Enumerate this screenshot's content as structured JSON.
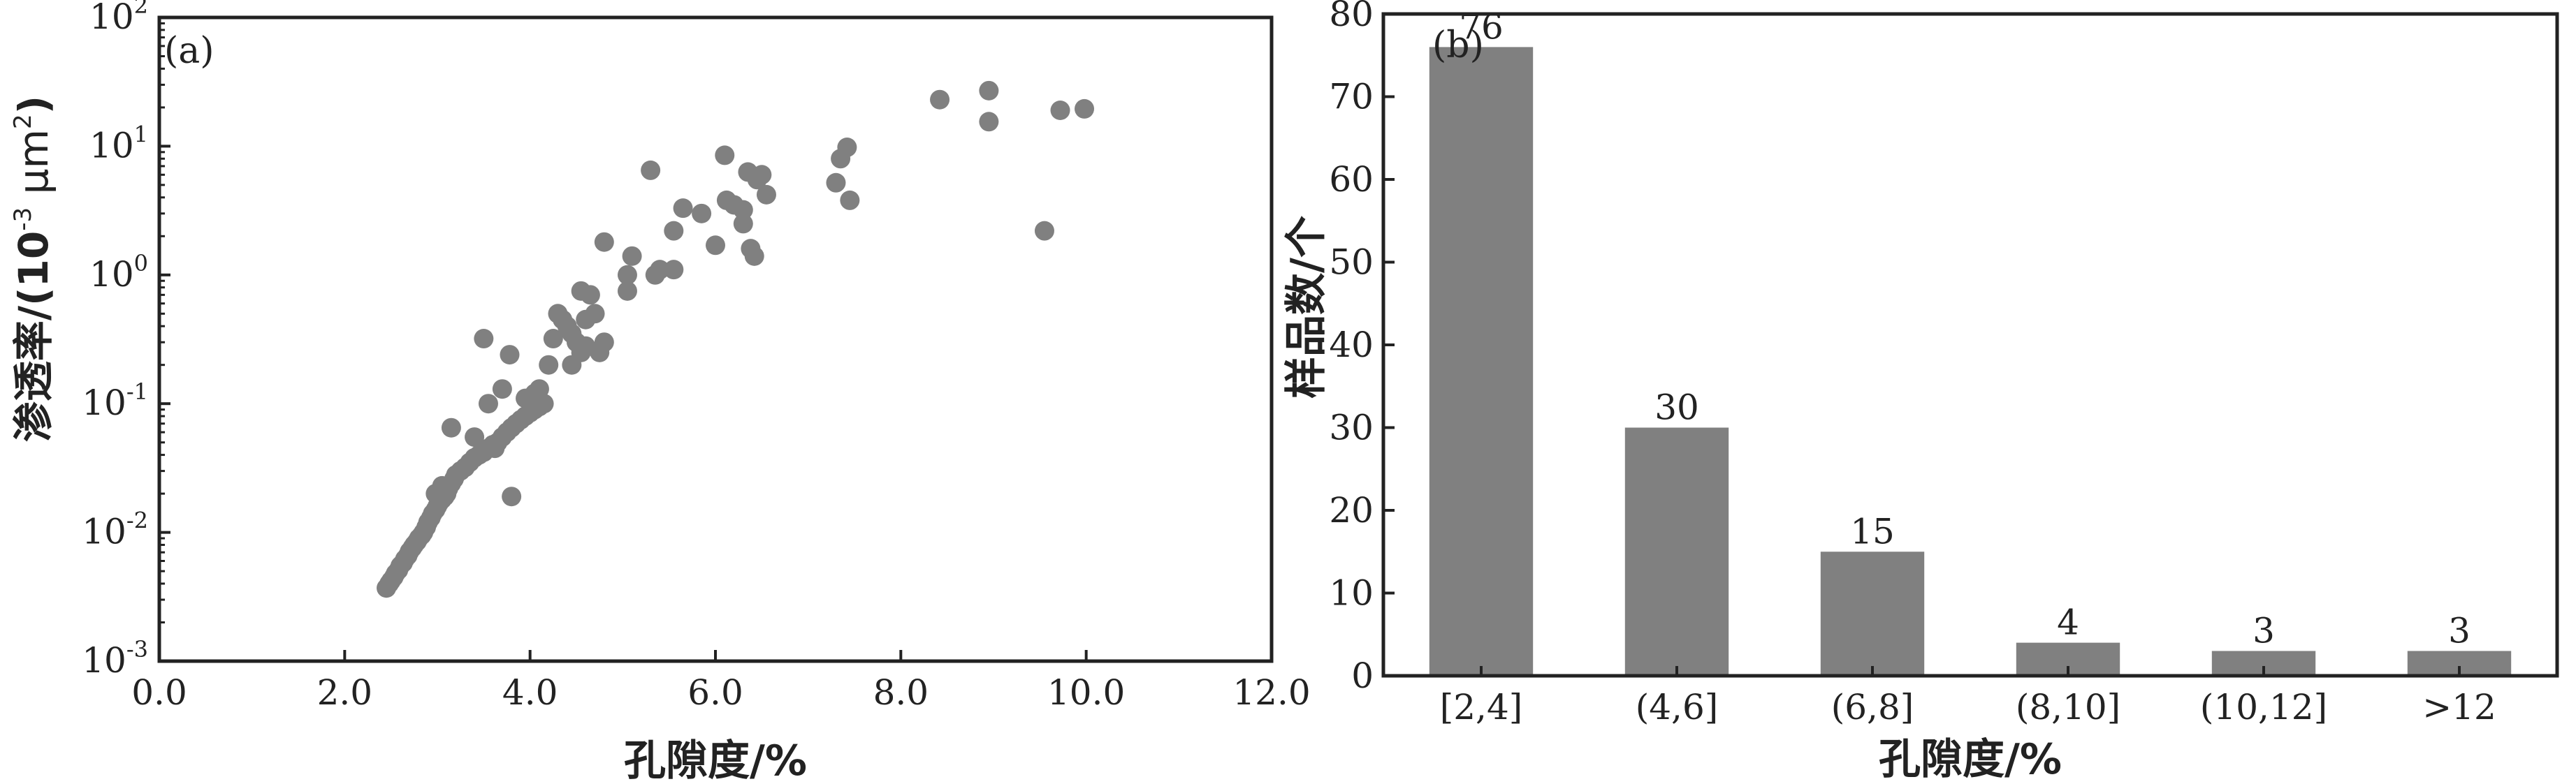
{
  "chart_data": [
    {
      "type": "scatter",
      "panel_label": "(a)",
      "xlabel": "孔隙度/%",
      "ylabel_main": "渗透率/(10",
      "ylabel_exp": "-3",
      "ylabel_unit": " μm",
      "ylabel_unit_exp": "2",
      "ylabel_close": ")",
      "x_ticks": [
        "0.0",
        "2.0",
        "4.0",
        "6.0",
        "8.0",
        "10.0",
        "12.0"
      ],
      "y_ticks": [
        {
          "base": "10",
          "exp": "-3"
        },
        {
          "base": "10",
          "exp": "-2"
        },
        {
          "base": "10",
          "exp": "-1"
        },
        {
          "base": "10",
          "exp": "0"
        },
        {
          "base": "10",
          "exp": "1"
        },
        {
          "base": "10",
          "exp": "2"
        }
      ],
      "xlim": [
        0,
        12
      ],
      "ylim": [
        0.001,
        100
      ],
      "yscale": "log",
      "marker_color": "#808080",
      "points": [
        [
          2.45,
          0.0037
        ],
        [
          2.48,
          0.004
        ],
        [
          2.5,
          0.0042
        ],
        [
          2.53,
          0.0045
        ],
        [
          2.55,
          0.0048
        ],
        [
          2.58,
          0.0051
        ],
        [
          2.6,
          0.0055
        ],
        [
          2.63,
          0.0058
        ],
        [
          2.65,
          0.0062
        ],
        [
          2.68,
          0.0066
        ],
        [
          2.7,
          0.0071
        ],
        [
          2.73,
          0.0076
        ],
        [
          2.75,
          0.008
        ],
        [
          2.78,
          0.0085
        ],
        [
          2.8,
          0.009
        ],
        [
          2.83,
          0.0095
        ],
        [
          2.85,
          0.01
        ],
        [
          2.88,
          0.011
        ],
        [
          2.9,
          0.012
        ],
        [
          2.93,
          0.013
        ],
        [
          2.95,
          0.014
        ],
        [
          2.98,
          0.015
        ],
        [
          3.0,
          0.016
        ],
        [
          3.02,
          0.017
        ],
        [
          3.05,
          0.018
        ],
        [
          3.08,
          0.019
        ],
        [
          3.1,
          0.02
        ],
        [
          3.12,
          0.022
        ],
        [
          3.15,
          0.024
        ],
        [
          3.18,
          0.026
        ],
        [
          3.2,
          0.028
        ],
        [
          3.25,
          0.03
        ],
        [
          3.3,
          0.032
        ],
        [
          3.35,
          0.035
        ],
        [
          3.4,
          0.038
        ],
        [
          3.45,
          0.04
        ],
        [
          3.5,
          0.042
        ],
        [
          3.55,
          0.045
        ],
        [
          3.6,
          0.048
        ],
        [
          3.65,
          0.05
        ],
        [
          3.7,
          0.055
        ],
        [
          3.75,
          0.06
        ],
        [
          3.8,
          0.065
        ],
        [
          3.85,
          0.07
        ],
        [
          3.9,
          0.075
        ],
        [
          3.95,
          0.08
        ],
        [
          4.0,
          0.085
        ],
        [
          4.05,
          0.09
        ],
        [
          4.1,
          0.095
        ],
        [
          4.15,
          0.1
        ],
        [
          2.98,
          0.02
        ],
        [
          3.05,
          0.023
        ],
        [
          3.15,
          0.065
        ],
        [
          3.4,
          0.055
        ],
        [
          3.55,
          0.1
        ],
        [
          3.5,
          0.32
        ],
        [
          3.78,
          0.24
        ],
        [
          3.7,
          0.13
        ],
        [
          3.62,
          0.045
        ],
        [
          3.8,
          0.019
        ],
        [
          3.95,
          0.11
        ],
        [
          4.05,
          0.12
        ],
        [
          4.1,
          0.13
        ],
        [
          4.2,
          0.2
        ],
        [
          4.25,
          0.32
        ],
        [
          4.3,
          0.5
        ],
        [
          4.35,
          0.45
        ],
        [
          4.4,
          0.4
        ],
        [
          4.45,
          0.35
        ],
        [
          4.5,
          0.3
        ],
        [
          4.55,
          0.25
        ],
        [
          4.6,
          0.28
        ],
        [
          4.6,
          0.45
        ],
        [
          4.65,
          0.7
        ],
        [
          4.55,
          0.75
        ],
        [
          4.7,
          0.5
        ],
        [
          4.75,
          0.25
        ],
        [
          4.8,
          0.3
        ],
        [
          4.8,
          1.8
        ],
        [
          4.45,
          0.2
        ],
        [
          5.05,
          0.75
        ],
        [
          5.05,
          1.0
        ],
        [
          5.1,
          1.4
        ],
        [
          5.3,
          6.5
        ],
        [
          5.35,
          1.0
        ],
        [
          5.4,
          1.1
        ],
        [
          5.55,
          1.1
        ],
        [
          5.55,
          2.2
        ],
        [
          5.65,
          3.3
        ],
        [
          5.85,
          3.0
        ],
        [
          6.0,
          1.7
        ],
        [
          6.1,
          8.5
        ],
        [
          6.12,
          3.8
        ],
        [
          6.2,
          3.5
        ],
        [
          6.3,
          2.5
        ],
        [
          6.3,
          3.2
        ],
        [
          6.35,
          6.3
        ],
        [
          6.38,
          1.6
        ],
        [
          6.42,
          1.4
        ],
        [
          6.45,
          5.5
        ],
        [
          6.5,
          6.0
        ],
        [
          6.55,
          4.2
        ],
        [
          7.3,
          5.2
        ],
        [
          7.35,
          8.0
        ],
        [
          7.42,
          9.8
        ],
        [
          7.45,
          3.8
        ],
        [
          8.42,
          23.0
        ],
        [
          8.95,
          27.0
        ],
        [
          8.95,
          15.5
        ],
        [
          9.55,
          2.2
        ],
        [
          9.72,
          19.0
        ],
        [
          9.98,
          19.5
        ]
      ]
    },
    {
      "type": "bar",
      "panel_label": "(b)",
      "xlabel": "孔隙度/%",
      "ylabel": "样品数/个",
      "categories": [
        "[2,4]",
        "(4,6]",
        "(6,8]",
        "(8,10]",
        "(10,12]",
        ">12"
      ],
      "values": [
        76,
        30,
        15,
        4,
        3,
        3
      ],
      "y_ticks": [
        "0",
        "10",
        "20",
        "30",
        "40",
        "50",
        "60",
        "70",
        "80"
      ],
      "ylim": [
        0,
        80
      ],
      "bar_color": "#808080"
    }
  ]
}
